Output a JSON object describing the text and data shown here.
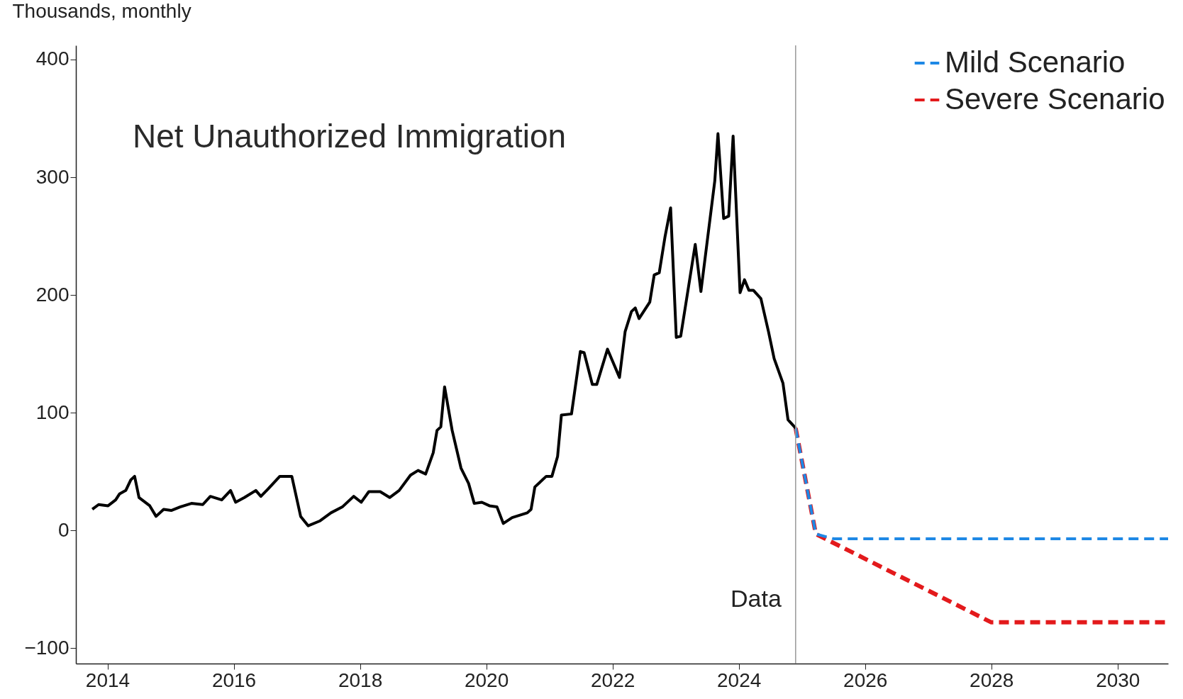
{
  "chart_data": {
    "type": "line",
    "title": "Net Unauthorized Immigration",
    "ylabel": "Thousands, monthly",
    "xlim": [
      2013.5,
      2030.8
    ],
    "xticks": [
      2014,
      2016,
      2018,
      2020,
      2022,
      2024,
      2026,
      2028,
      2030
    ],
    "ylim": [
      -113,
      412
    ],
    "yticks": [
      -100,
      0,
      100,
      200,
      300,
      400
    ],
    "grid": false,
    "legend": "top right",
    "marker": "none",
    "ref_lines": [
      {
        "axis": "x",
        "value": 2024.9,
        "label": "Data",
        "color": "#999999"
      }
    ],
    "series": [
      {
        "color": "#000000",
        "line_style": "solid",
        "x": [
          2013.76,
          2013.86,
          2014.01,
          2014.13,
          2014.19,
          2014.29,
          2014.37,
          2014.43,
          2014.5,
          2014.67,
          2014.77,
          2014.89,
          2015.01,
          2015.15,
          2015.33,
          2015.51,
          2015.63,
          2015.81,
          2015.95,
          2016.03,
          2016.17,
          2016.35,
          2016.43,
          2016.54,
          2016.73,
          2016.92,
          2017.06,
          2017.18,
          2017.36,
          2017.54,
          2017.72,
          2017.9,
          2018.02,
          2018.14,
          2018.32,
          2018.47,
          2018.62,
          2018.8,
          2018.92,
          2019.04,
          2019.16,
          2019.22,
          2019.28,
          2019.34,
          2019.46,
          2019.6,
          2019.72,
          2019.81,
          2019.93,
          2020.05,
          2020.17,
          2020.27,
          2020.41,
          2020.65,
          2020.71,
          2020.77,
          2020.95,
          2021.04,
          2021.13,
          2021.19,
          2021.35,
          2021.49,
          2021.55,
          2021.68,
          2021.75,
          2021.92,
          2022.11,
          2022.2,
          2022.3,
          2022.36,
          2022.42,
          2022.59,
          2022.66,
          2022.74,
          2022.83,
          2022.92,
          2023.01,
          2023.08,
          2023.31,
          2023.4,
          2023.62,
          2023.67,
          2023.76,
          2023.84,
          2023.91,
          2024.02,
          2024.09,
          2024.16,
          2024.23,
          2024.35,
          2024.47,
          2024.56,
          2024.7,
          2024.78,
          2024.9
        ],
        "values": [
          18,
          22,
          21,
          26,
          31,
          34,
          43,
          46,
          28,
          21,
          12,
          18,
          17,
          20,
          23,
          22,
          29,
          26,
          34,
          24,
          28,
          34,
          29,
          35,
          46,
          46,
          12,
          4,
          8,
          15,
          20,
          29,
          24,
          33,
          33,
          28,
          34,
          47,
          51,
          48,
          66,
          85,
          88,
          122,
          85,
          53,
          40,
          23,
          24,
          21,
          20,
          6,
          11,
          15,
          18,
          37,
          46,
          46,
          63,
          98,
          99,
          152,
          151,
          124,
          124,
          154,
          130,
          169,
          186,
          189,
          180,
          194,
          217,
          219,
          249,
          274,
          164,
          165,
          243,
          203,
          297,
          337,
          265,
          267,
          335,
          202,
          213,
          204,
          204,
          197,
          169,
          146,
          125,
          94,
          87
        ]
      },
      {
        "name": "Mild Scenario",
        "color": "#1e88e5",
        "line_style": "dashed",
        "x": [
          2024.9,
          2025.22,
          2025.5,
          2030.8
        ],
        "values": [
          87,
          -3,
          -7,
          -7
        ]
      },
      {
        "name": "Severe Scenario",
        "color": "#e31a1c",
        "line_style": "dashed",
        "x": [
          2024.9,
          2025.22,
          2028.0,
          2030.8
        ],
        "values": [
          87,
          -3,
          -78,
          -78
        ]
      }
    ]
  }
}
